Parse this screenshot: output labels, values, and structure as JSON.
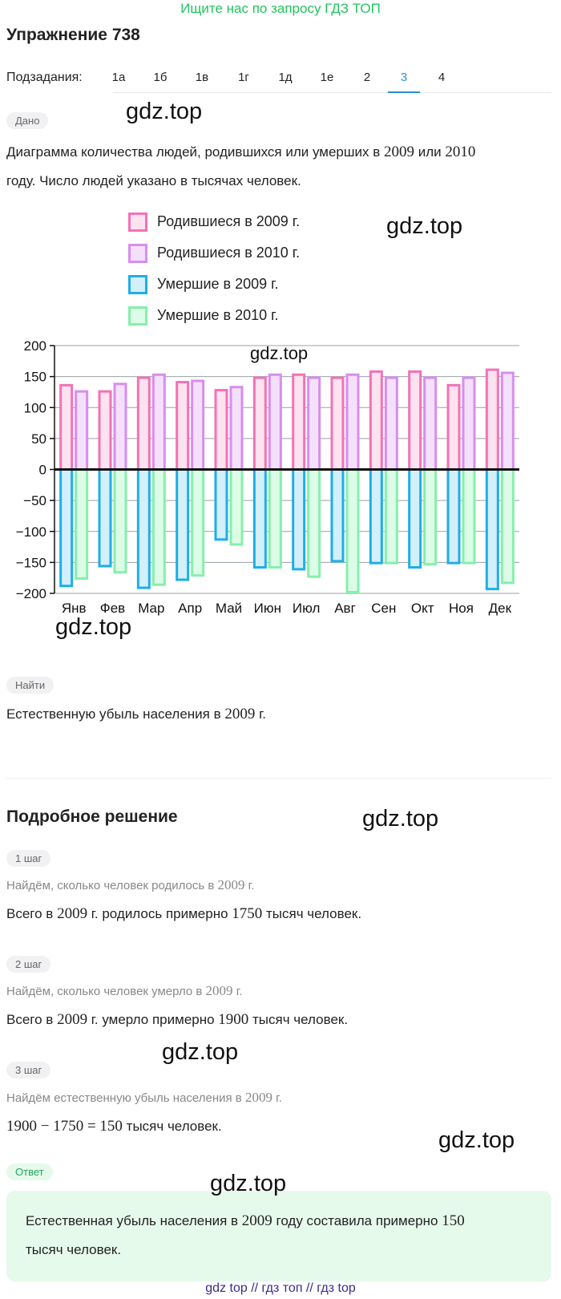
{
  "promo": "Ищите нас по запросу ГДЗ ТОП",
  "title": "Упражнение 738",
  "subtasks": {
    "label": "Подзадания:",
    "tabs": [
      "1а",
      "1б",
      "1в",
      "1г",
      "1д",
      "1е",
      "2",
      "3",
      "4"
    ],
    "active": "3"
  },
  "watermark": "gdz.top",
  "given": {
    "pill": "Дано",
    "line1_a": "Диаграмма количества людей, родившихся или умерших в ",
    "year1": "2009",
    "line1_b": " или ",
    "year2": "2010",
    "line2": "году. Число людей указано в тысячах человек."
  },
  "legend": [
    {
      "label": "Родившиеся в 2009 г.",
      "stroke": "#f472b6",
      "fill": "#fde2ef"
    },
    {
      "label": "Родившиеся в 2010 г.",
      "stroke": "#d88df0",
      "fill": "#f4e0fb"
    },
    {
      "label": "Умершие в 2009 г.",
      "stroke": "#1eaee8",
      "fill": "#d2effa"
    },
    {
      "label": "Умершие в 2010 г.",
      "stroke": "#86efac",
      "fill": "#dcfce7"
    }
  ],
  "chart_data": {
    "type": "bar",
    "categories": [
      "Янв",
      "Фев",
      "Мар",
      "Апр",
      "Май",
      "Июн",
      "Июл",
      "Авг",
      "Сен",
      "Окт",
      "Ноя",
      "Дек"
    ],
    "ylim": [
      -200,
      200
    ],
    "yticks": [
      "200",
      "150",
      "100",
      "50",
      "0",
      "-50",
      "-100",
      "-150",
      "-200"
    ],
    "grid": true,
    "series": [
      {
        "name": "Родившиеся в 2009 г.",
        "values": [
          138,
          128,
          150,
          143,
          130,
          150,
          155,
          150,
          160,
          160,
          138,
          163
        ]
      },
      {
        "name": "Родившиеся в 2010 г.",
        "values": [
          128,
          140,
          155,
          145,
          135,
          155,
          150,
          155,
          150,
          150,
          150,
          158
        ]
      },
      {
        "name": "Умершие в 2009 г.",
        "values": [
          -190,
          -158,
          -193,
          -180,
          -115,
          -160,
          -163,
          -150,
          -153,
          -160,
          -153,
          -195
        ]
      },
      {
        "name": "Умершие в 2010 г.",
        "values": [
          -178,
          -168,
          -188,
          -173,
          -123,
          -160,
          -175,
          -200,
          -153,
          -155,
          -153,
          -185
        ]
      }
    ]
  },
  "find": {
    "pill": "Найти",
    "text_a": "Естественную убыль населения в ",
    "year": "2009",
    "text_b": " г."
  },
  "solution": {
    "title": "Подробное решение",
    "steps": [
      {
        "pill": "1 шаг",
        "hint_a": "Найдём, сколько человек родилось в ",
        "hint_year": "2009",
        "hint_b": " г.",
        "text_a": "Всего в ",
        "year": "2009",
        "text_b": " г. родилось примерно ",
        "value": "1750",
        "text_c": " тысяч человек."
      },
      {
        "pill": "2 шаг",
        "hint_a": "Найдём, сколько человек умерло в ",
        "hint_year": "2009",
        "hint_b": " г.",
        "text_a": "Всего в ",
        "year": "2009",
        "text_b": " г. умерло примерно ",
        "value": "1900",
        "text_c": " тысяч человек."
      },
      {
        "pill": "3 шаг",
        "hint_a": "Найдём естественную убыль населения в ",
        "hint_year": "2009",
        "hint_b": " г.",
        "formula": "1900 − 1750 = 150",
        "text_c": " тысяч человек."
      }
    ]
  },
  "answer": {
    "pill": "Ответ",
    "text_a": "Естественная убыль населения в ",
    "year": "2009",
    "text_b": " году составила примерно ",
    "value": "150",
    "line2": "тысяч человек."
  },
  "footer": "gdz top  //  гдз топ  //  гдз top"
}
